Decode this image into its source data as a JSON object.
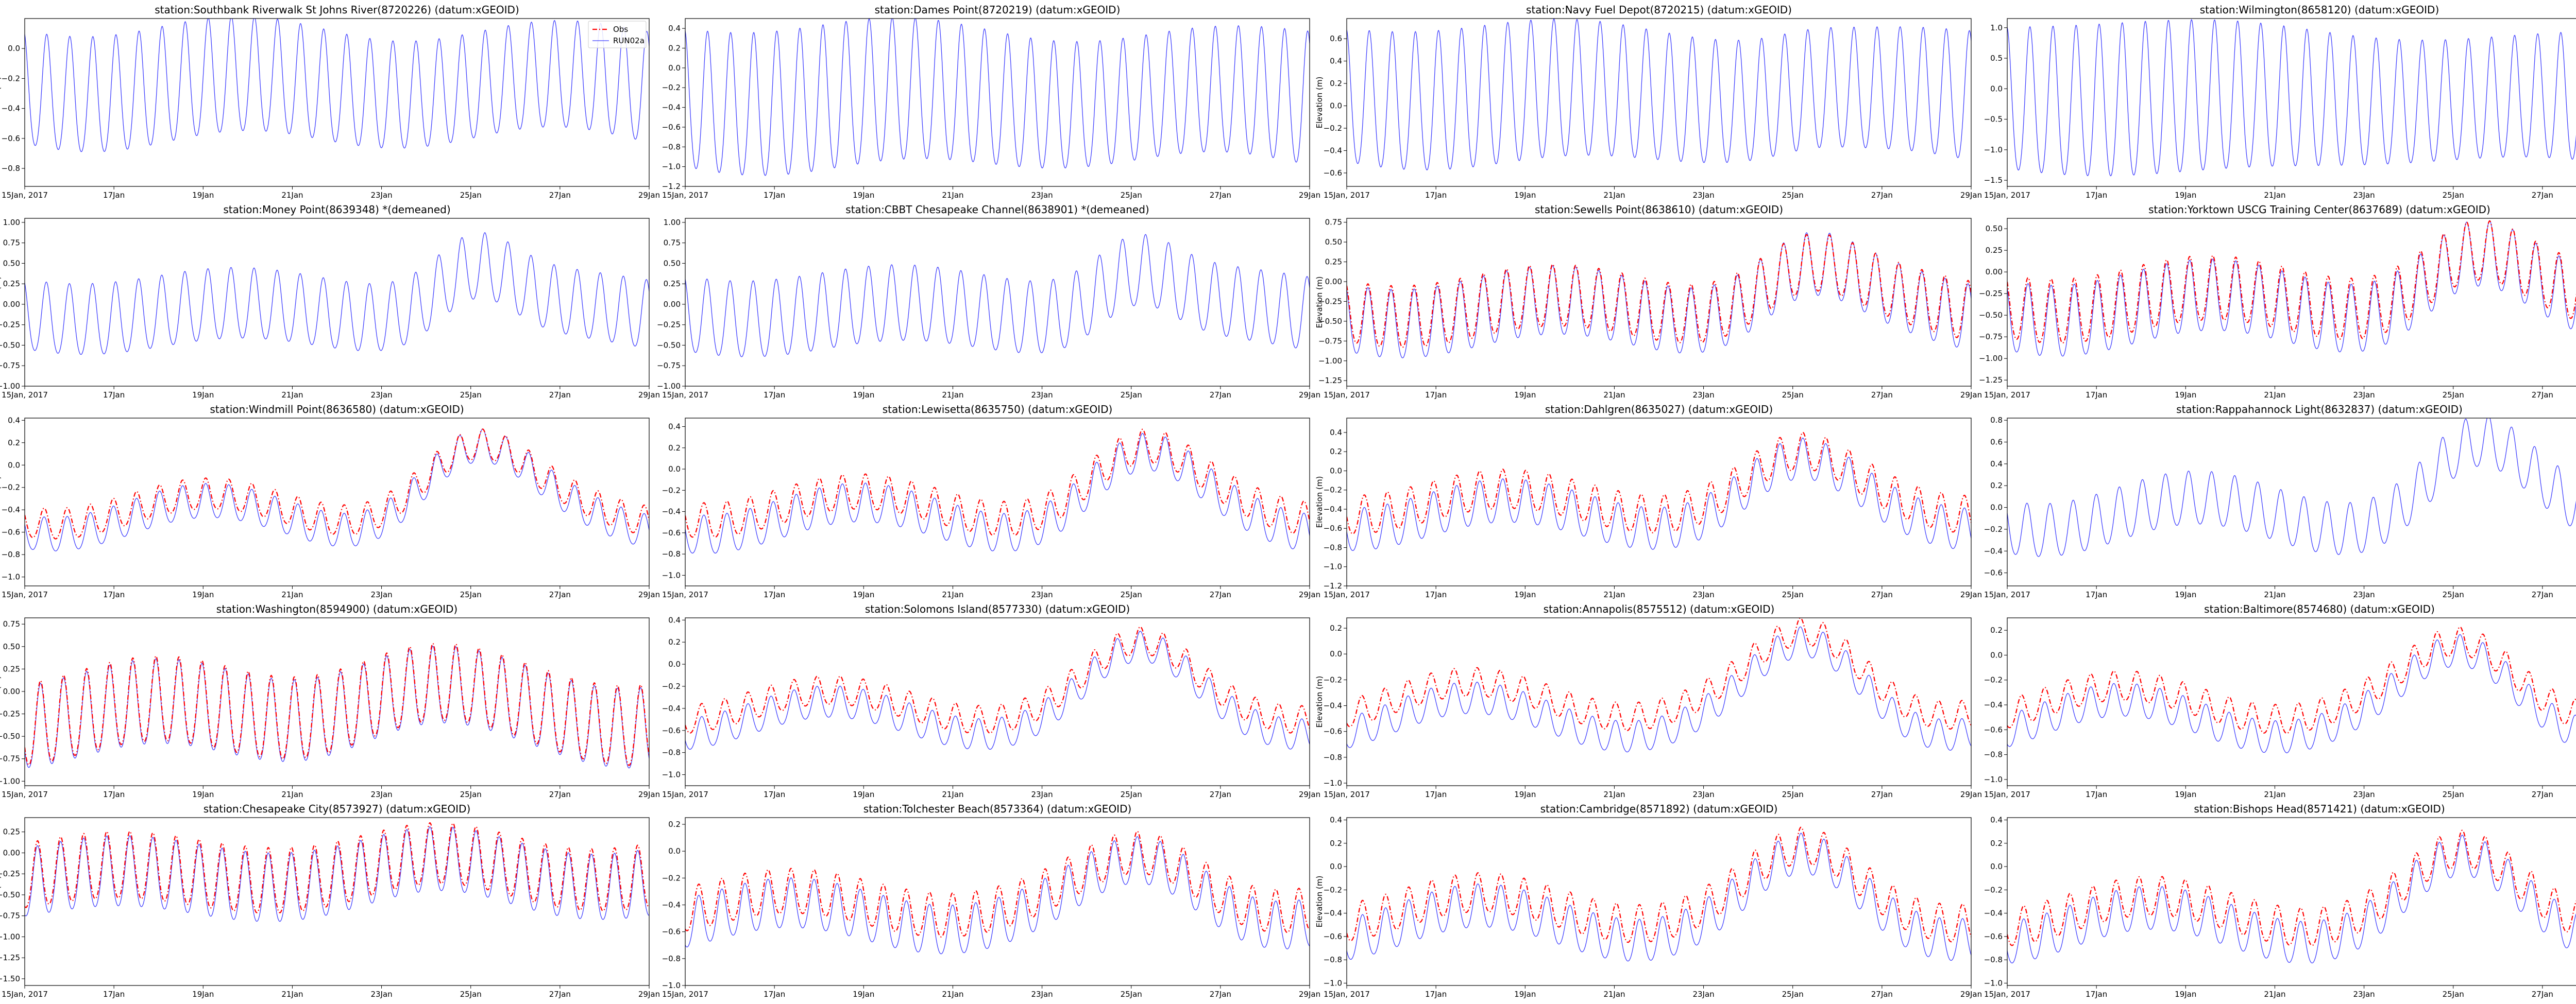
{
  "colors": {
    "obs": "#ff0000",
    "model": "#0000ff",
    "axis": "#000000",
    "background": "#ffffff"
  },
  "legend": {
    "obs_label": "Obs",
    "model_label": "RUN02a",
    "location": "top-right of first panel"
  },
  "shared": {
    "ylabel": "Elevation (m)",
    "xlim": [
      0,
      14
    ],
    "x_tick_values": [
      0,
      2,
      4,
      6,
      8,
      10,
      12,
      14
    ],
    "x_tick_labels": [
      "15Jan, 2017",
      "17Jan",
      "19Jan",
      "21Jan",
      "23Jan",
      "25Jan",
      "27Jan",
      "29Jan"
    ]
  },
  "chart_data": [
    {
      "type": "line",
      "title": "station:Southbank Riverwalk St Johns River(8720226) (datum:xGEOID)",
      "ylim": [
        -0.92,
        0.2
      ],
      "yticks": [
        0.0,
        -0.2,
        -0.4,
        -0.6,
        -0.8
      ],
      "ytick_labels": [
        "0.0",
        "−0.2",
        "−0.4",
        "−0.6",
        "−0.8"
      ],
      "has_obs": false,
      "show_ylabel": true,
      "show_legend": true,
      "model": {
        "base": -0.27,
        "amp": 0.37,
        "amp_var": 0.05,
        "trend": -0.07,
        "surge_peak": 0.0,
        "surge_center": 10.6,
        "surge_width": 1.2,
        "phase": 0.3
      },
      "obs": null
    },
    {
      "type": "line",
      "title": "station:Dames Point(8720219) (datum:xGEOID)",
      "ylim": [
        -1.2,
        0.5
      ],
      "yticks": [
        0.4,
        0.2,
        0.0,
        -0.2,
        -0.4,
        -0.6,
        -0.8,
        -1.0,
        -1.2
      ],
      "ytick_labels": [
        "0.4",
        "0.2",
        "0.0",
        "−0.2",
        "−0.4",
        "−0.6",
        "−0.8",
        "−1.0",
        "−1.2"
      ],
      "has_obs": false,
      "show_ylabel": false,
      "show_legend": false,
      "model": {
        "base": -0.35,
        "amp": 0.68,
        "amp_var": 0.08,
        "trend": -0.08,
        "surge_peak": 0.0,
        "surge_center": 10.6,
        "surge_width": 1.2,
        "phase": 0.2
      },
      "obs": null
    },
    {
      "type": "line",
      "title": "station:Navy Fuel Depot(8720215) (datum:xGEOID)",
      "ylim": [
        -0.72,
        0.78
      ],
      "yticks": [
        0.6,
        0.4,
        0.2,
        0.0,
        -0.2,
        -0.4,
        -0.6
      ],
      "ytick_labels": [
        "0.6",
        "0.4",
        "0.2",
        "0.0",
        "−0.2",
        "−0.4",
        "−0.6"
      ],
      "has_obs": false,
      "show_ylabel": true,
      "show_legend": false,
      "model": {
        "base": 0.05,
        "amp": 0.58,
        "amp_var": 0.08,
        "trend": -0.06,
        "surge_peak": 0.05,
        "surge_center": 10.4,
        "surge_width": 1.0,
        "phase": 0.15
      },
      "obs": null
    },
    {
      "type": "line",
      "title": "station:Wilmington(8658120) (datum:xGEOID)",
      "ylim": [
        -1.6,
        1.15
      ],
      "yticks": [
        1.0,
        0.5,
        0.0,
        -0.5,
        -1.0,
        -1.5
      ],
      "ytick_labels": [
        "1.0",
        "0.5",
        "0.0",
        "−0.5",
        "−1.0",
        "−1.5"
      ],
      "has_obs": false,
      "show_ylabel": false,
      "show_legend": false,
      "model": {
        "base": -0.25,
        "amp": 1.12,
        "amp_var": 0.12,
        "trend": -0.05,
        "surge_peak": 0.0,
        "surge_center": 10.6,
        "surge_width": 1.2,
        "phase": 0.1
      },
      "obs": null
    },
    {
      "type": "line",
      "title": "station:Money Point(8639348) *(demeaned)",
      "ylim": [
        -1.0,
        1.05
      ],
      "yticks": [
        1.0,
        0.75,
        0.5,
        0.25,
        0.0,
        -0.25,
        -0.5,
        -0.75,
        -1.0
      ],
      "ytick_labels": [
        "1.00",
        "0.75",
        "0.50",
        "0.25",
        "0.00",
        "−0.25",
        "−0.50",
        "−0.75",
        "−1.00"
      ],
      "has_obs": false,
      "show_ylabel": true,
      "show_legend": false,
      "model": {
        "base": -0.12,
        "amp": 0.42,
        "amp_var": 0.04,
        "trend": -0.1,
        "surge_peak": 0.55,
        "surge_center": 10.1,
        "surge_width": 1.2,
        "phase": 0.4
      },
      "obs": null
    },
    {
      "type": "line",
      "title": "station:CBBT Chesapeake Channel(8638901) *(demeaned)",
      "ylim": [
        -1.0,
        1.05
      ],
      "yticks": [
        1.0,
        0.75,
        0.5,
        0.25,
        0.0,
        -0.25,
        -0.5,
        -0.75,
        -1.0
      ],
      "ytick_labels": [
        "1.00",
        "0.75",
        "0.50",
        "0.25",
        "0.00",
        "−0.25",
        "−0.50",
        "−0.75",
        "−1.00"
      ],
      "has_obs": false,
      "show_ylabel": false,
      "show_legend": false,
      "model": {
        "base": -0.12,
        "amp": 0.45,
        "amp_var": 0.04,
        "trend": -0.1,
        "surge_peak": 0.5,
        "surge_center": 10.1,
        "surge_width": 1.2,
        "phase": 0.35
      },
      "obs": null
    },
    {
      "type": "line",
      "title": "station:Sewells Point(8638610) (datum:xGEOID)",
      "ylim": [
        -1.32,
        0.8
      ],
      "yticks": [
        0.75,
        0.5,
        0.25,
        0.0,
        -0.25,
        -0.5,
        -0.75,
        -1.0,
        -1.25
      ],
      "ytick_labels": [
        "0.75",
        "0.50",
        "0.25",
        "0.00",
        "−0.25",
        "−0.50",
        "−0.75",
        "−1.00",
        "−1.25"
      ],
      "has_obs": true,
      "show_ylabel": true,
      "show_legend": false,
      "model": {
        "base": -0.42,
        "amp": 0.42,
        "amp_var": 0.04,
        "trend": -0.15,
        "surge_peak": 0.55,
        "surge_center": 10.3,
        "surge_width": 1.5,
        "phase": 0.5
      },
      "obs": {
        "offset": 0.08,
        "amp_scale": 0.9
      }
    },
    {
      "type": "line",
      "title": "station:Yorktown USCG Training Center(8637689) (datum:xGEOID)",
      "ylim": [
        -1.32,
        0.62
      ],
      "yticks": [
        0.5,
        0.25,
        0.0,
        -0.25,
        -0.5,
        -0.75,
        -1.0,
        -1.25
      ],
      "ytick_labels": [
        "0.50",
        "0.25",
        "0.00",
        "−0.25",
        "−0.50",
        "−0.75",
        "−1.00",
        "−1.25"
      ],
      "has_obs": true,
      "show_ylabel": false,
      "show_legend": false,
      "model": {
        "base": -0.45,
        "amp": 0.4,
        "amp_var": 0.04,
        "trend": -0.15,
        "surge_peak": 0.55,
        "surge_center": 10.4,
        "surge_width": 1.5,
        "phase": 0.6
      },
      "obs": {
        "offset": 0.1,
        "amp_scale": 0.9
      }
    },
    {
      "type": "line",
      "title": "station:Windmill Point(8636580) (datum:xGEOID)",
      "ylim": [
        -1.08,
        0.42
      ],
      "yticks": [
        0.4,
        0.2,
        0.0,
        -0.2,
        -0.4,
        -0.6,
        -0.8,
        -1.0
      ],
      "ytick_labels": [
        "0.4",
        "0.2",
        "0.0",
        "−0.2",
        "−0.4",
        "−0.6",
        "−0.8",
        "−1.0"
      ],
      "has_obs": true,
      "show_ylabel": true,
      "show_legend": false,
      "model": {
        "base": -0.48,
        "amp": 0.15,
        "amp_var": 0.02,
        "trend": -0.15,
        "surge_peak": 0.55,
        "surge_center": 10.0,
        "surge_width": 1.6,
        "phase": 1.0
      },
      "obs": {
        "offset": 0.08,
        "amp_scale": 0.9
      }
    },
    {
      "type": "line",
      "title": "station:Lewisetta(8635750) (datum:xGEOID)",
      "ylim": [
        -1.1,
        0.48
      ],
      "yticks": [
        0.4,
        0.2,
        0.0,
        -0.2,
        -0.4,
        -0.6,
        -0.8,
        -1.0
      ],
      "ytick_labels": [
        "0.4",
        "0.2",
        "0.0",
        "−0.2",
        "−0.4",
        "−0.6",
        "−0.8",
        "−1.0"
      ],
      "has_obs": true,
      "show_ylabel": false,
      "show_legend": false,
      "model": {
        "base": -0.48,
        "amp": 0.18,
        "amp_var": 0.02,
        "trend": -0.15,
        "surge_peak": 0.5,
        "surge_center": 10.2,
        "surge_width": 1.6,
        "phase": 1.2
      },
      "obs": {
        "offset": 0.12,
        "amp_scale": 0.9
      }
    },
    {
      "type": "line",
      "title": "station:Dahlgren(8635027) (datum:xGEOID)",
      "ylim": [
        -1.2,
        0.55
      ],
      "yticks": [
        0.4,
        0.2,
        0.0,
        -0.2,
        -0.4,
        -0.6,
        -0.8,
        -1.0,
        -1.2
      ],
      "ytick_labels": [
        "0.4",
        "0.2",
        "0.0",
        "−0.2",
        "−0.4",
        "−0.6",
        "−0.8",
        "−1.0",
        "−1.2"
      ],
      "has_obs": true,
      "show_ylabel": true,
      "show_legend": false,
      "model": {
        "base": -0.48,
        "amp": 0.22,
        "amp_var": 0.03,
        "trend": -0.15,
        "surge_peak": 0.45,
        "surge_center": 10.1,
        "surge_width": 1.6,
        "phase": 1.5
      },
      "obs": {
        "offset": 0.14,
        "amp_scale": 0.9
      }
    },
    {
      "type": "line",
      "title": "station:Rappahannock Light(8632837) (datum:xGEOID)",
      "ylim": [
        -0.72,
        0.82
      ],
      "yticks": [
        0.8,
        0.6,
        0.4,
        0.2,
        0.0,
        -0.2,
        -0.4,
        -0.6
      ],
      "ytick_labels": [
        "0.8",
        "0.6",
        "0.4",
        "0.2",
        "0.0",
        "−0.2",
        "−0.4",
        "−0.6"
      ],
      "has_obs": false,
      "show_ylabel": false,
      "show_legend": false,
      "model": {
        "base": -0.08,
        "amp": 0.24,
        "amp_var": 0.02,
        "trend": -0.15,
        "surge_peak": 0.55,
        "surge_center": 10.5,
        "surge_width": 1.5,
        "phase": 0.9
      },
      "obs": null
    },
    {
      "type": "line",
      "title": "station:Washington(8594900) (datum:xGEOID)",
      "ylim": [
        -1.05,
        0.82
      ],
      "yticks": [
        0.75,
        0.5,
        0.25,
        0.0,
        -0.25,
        -0.5,
        -0.75,
        -1.0
      ],
      "ytick_labels": [
        "0.75",
        "0.50",
        "0.25",
        "0.00",
        "−0.25",
        "−0.50",
        "−0.75",
        "−1.00"
      ],
      "has_obs": true,
      "show_ylabel": true,
      "show_legend": false,
      "model": {
        "base": -0.3,
        "amp": 0.45,
        "amp_var": 0.05,
        "trend": -0.15,
        "surge_peak": 0.25,
        "surge_center": 8.5,
        "surge_width": 2.2,
        "phase": 2.0
      },
      "obs": {
        "offset": 0.03,
        "amp_scale": 1.0
      }
    },
    {
      "type": "line",
      "title": "station:Solomons Island(8577330) (datum:xGEOID)",
      "ylim": [
        -1.1,
        0.42
      ],
      "yticks": [
        0.4,
        0.2,
        0.0,
        -0.2,
        -0.4,
        -0.6,
        -0.8,
        -1.0
      ],
      "ytick_labels": [
        "0.4",
        "0.2",
        "0.0",
        "−0.2",
        "−0.4",
        "−0.6",
        "−0.8",
        "−1.0"
      ],
      "has_obs": true,
      "show_ylabel": false,
      "show_legend": false,
      "model": {
        "base": -0.5,
        "amp": 0.14,
        "amp_var": 0.02,
        "trend": -0.15,
        "surge_peak": 0.5,
        "surge_center": 10.2,
        "surge_width": 1.6,
        "phase": 1.8
      },
      "obs": {
        "offset": 0.12,
        "amp_scale": 0.9
      }
    },
    {
      "type": "line",
      "title": "station:Annapolis(8575512) (datum:xGEOID)",
      "ylim": [
        -1.02,
        0.28
      ],
      "yticks": [
        0.2,
        0.0,
        -0.2,
        -0.4,
        -0.6,
        -0.8,
        -1.0
      ],
      "ytick_labels": [
        "0.2",
        "0.0",
        "−0.2",
        "−0.4",
        "−0.6",
        "−0.8",
        "−1.0"
      ],
      "has_obs": true,
      "show_ylabel": true,
      "show_legend": false,
      "model": {
        "base": -0.5,
        "amp": 0.12,
        "amp_var": 0.02,
        "trend": -0.15,
        "surge_peak": 0.45,
        "surge_center": 10.4,
        "surge_width": 1.6,
        "phase": 2.2
      },
      "obs": {
        "offset": 0.14,
        "amp_scale": 0.9
      }
    },
    {
      "type": "line",
      "title": "station:Baltimore(8574680) (datum:xGEOID)",
      "ylim": [
        -1.05,
        0.3
      ],
      "yticks": [
        0.2,
        0.0,
        -0.2,
        -0.4,
        -0.6,
        -0.8,
        -1.0
      ],
      "ytick_labels": [
        "0.2",
        "0.0",
        "−0.2",
        "−0.4",
        "−0.6",
        "−0.8",
        "−1.0"
      ],
      "has_obs": true,
      "show_ylabel": false,
      "show_legend": false,
      "model": {
        "base": -0.52,
        "amp": 0.13,
        "amp_var": 0.02,
        "trend": -0.15,
        "surge_peak": 0.42,
        "surge_center": 10.3,
        "surge_width": 1.6,
        "phase": 2.4
      },
      "obs": {
        "offset": 0.13,
        "amp_scale": 0.9
      }
    },
    {
      "type": "line",
      "title": "station:Chesapeake City(8573927) (datum:xGEOID)",
      "ylim": [
        -1.58,
        0.42
      ],
      "yticks": [
        0.25,
        0.0,
        -0.25,
        -0.5,
        -0.75,
        -1.0,
        -1.25,
        -1.5
      ],
      "ytick_labels": [
        "0.25",
        "0.00",
        "−0.25",
        "−0.50",
        "−0.75",
        "−1.00",
        "−1.25",
        "−1.50"
      ],
      "has_obs": true,
      "show_ylabel": true,
      "show_legend": false,
      "model": {
        "base": -0.35,
        "amp": 0.4,
        "amp_var": 0.05,
        "trend": -0.1,
        "surge_peak": 0.15,
        "surge_center": 9.5,
        "surge_width": 2.0,
        "phase": 2.8
      },
      "obs": {
        "offset": 0.08,
        "amp_scale": 0.95
      }
    },
    {
      "type": "line",
      "title": "station:Tolchester Beach(8573364) (datum:xGEOID)",
      "ylim": [
        -1.0,
        0.25
      ],
      "yticks": [
        0.2,
        0.0,
        -0.2,
        -0.4,
        -0.6,
        -0.8,
        -1.0
      ],
      "ytick_labels": [
        "0.2",
        "0.0",
        "−0.2",
        "−0.4",
        "−0.6",
        "−0.8",
        "−1.0"
      ],
      "has_obs": true,
      "show_ylabel": false,
      "show_legend": false,
      "model": {
        "base": -0.5,
        "amp": 0.18,
        "amp_var": 0.03,
        "trend": -0.1,
        "surge_peak": 0.35,
        "surge_center": 10.4,
        "surge_width": 1.8,
        "phase": 2.6
      },
      "obs": {
        "offset": 0.1,
        "amp_scale": 0.9
      }
    },
    {
      "type": "line",
      "title": "station:Cambridge(8571892) (datum:xGEOID)",
      "ylim": [
        -1.02,
        0.42
      ],
      "yticks": [
        0.4,
        0.2,
        0.0,
        -0.2,
        -0.4,
        -0.6,
        -0.8,
        -1.0
      ],
      "ytick_labels": [
        "0.4",
        "0.2",
        "0.0",
        "−0.2",
        "−0.4",
        "−0.6",
        "−0.8",
        "−1.0"
      ],
      "has_obs": true,
      "show_ylabel": true,
      "show_legend": false,
      "model": {
        "base": -0.5,
        "amp": 0.18,
        "amp_var": 0.03,
        "trend": -0.15,
        "surge_peak": 0.45,
        "surge_center": 10.3,
        "surge_width": 1.6,
        "phase": 2.0
      },
      "obs": {
        "offset": 0.13,
        "amp_scale": 0.9
      }
    },
    {
      "type": "line",
      "title": "station:Bishops Head(8571421) (datum:xGEOID)",
      "ylim": [
        -1.02,
        0.42
      ],
      "yticks": [
        0.4,
        0.2,
        0.0,
        -0.2,
        -0.4,
        -0.6,
        -0.8,
        -1.0
      ],
      "ytick_labels": [
        "0.4",
        "0.2",
        "0.0",
        "−0.2",
        "−0.4",
        "−0.6",
        "−0.8",
        "−1.0"
      ],
      "has_obs": true,
      "show_ylabel": false,
      "show_legend": false,
      "model": {
        "base": -0.52,
        "amp": 0.18,
        "amp_var": 0.03,
        "trend": -0.15,
        "surge_peak": 0.45,
        "surge_center": 10.2,
        "surge_width": 1.6,
        "phase": 1.8
      },
      "obs": {
        "offset": 0.12,
        "amp_scale": 0.9
      }
    }
  ]
}
